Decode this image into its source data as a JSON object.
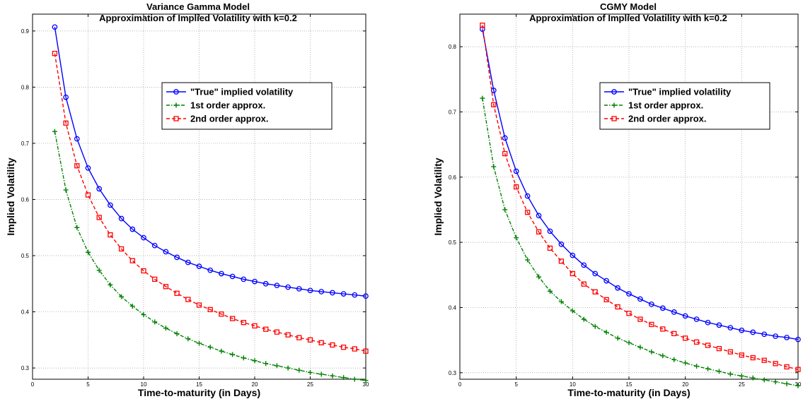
{
  "chart_data": [
    {
      "type": "line",
      "title": "Variance Gamma Model",
      "subtitle": "Approximation of Implied Volatility with k=0.2",
      "xlabel": "Time-to-maturity (in Days)",
      "ylabel": "Implied Volatility",
      "xlim": [
        0,
        30
      ],
      "ylim": [
        0.28,
        0.93
      ],
      "x_ticks": [
        "0",
        "5",
        "10",
        "15",
        "20",
        "25",
        "30"
      ],
      "y_ticks": [
        "0.3",
        "0.4",
        "0.5",
        "0.6",
        "0.7",
        "0.8",
        "0.9"
      ],
      "grid": true,
      "legend_position": "upper-right",
      "x": [
        2,
        3,
        4,
        5,
        6,
        7,
        8,
        9,
        10,
        11,
        12,
        13,
        14,
        15,
        16,
        17,
        18,
        19,
        20,
        21,
        22,
        23,
        24,
        25,
        26,
        27,
        28,
        29,
        30
      ],
      "series": [
        {
          "name": "\"True\" implied volatility",
          "color": "#0000ff",
          "line_style": "solid",
          "marker": "circle",
          "values": [
            0.907,
            0.782,
            0.708,
            0.656,
            0.619,
            0.59,
            0.566,
            0.547,
            0.532,
            0.518,
            0.507,
            0.497,
            0.488,
            0.481,
            0.474,
            0.468,
            0.463,
            0.458,
            0.454,
            0.45,
            0.447,
            0.444,
            0.441,
            0.438,
            0.436,
            0.434,
            0.432,
            0.43,
            0.428
          ]
        },
        {
          "name": "1st order approx.",
          "color": "#008000",
          "line_style": "dash-dot",
          "marker": "plus",
          "values": [
            0.721,
            0.617,
            0.55,
            0.506,
            0.474,
            0.448,
            0.427,
            0.41,
            0.395,
            0.382,
            0.371,
            0.361,
            0.352,
            0.344,
            0.337,
            0.33,
            0.324,
            0.318,
            0.313,
            0.308,
            0.304,
            0.3,
            0.296,
            0.292,
            0.289,
            0.286,
            0.283,
            0.28,
            0.278
          ]
        },
        {
          "name": "2nd order approx.",
          "color": "#ff0000",
          "line_style": "dashed",
          "marker": "square",
          "values": [
            0.86,
            0.736,
            0.66,
            0.608,
            0.568,
            0.537,
            0.512,
            0.491,
            0.473,
            0.458,
            0.445,
            0.433,
            0.422,
            0.412,
            0.404,
            0.396,
            0.388,
            0.381,
            0.375,
            0.369,
            0.364,
            0.359,
            0.354,
            0.35,
            0.345,
            0.341,
            0.337,
            0.334,
            0.33
          ]
        }
      ]
    },
    {
      "type": "line",
      "title": "CGMY Model",
      "subtitle": "Approximation of Implied Volatility with k=0.2",
      "xlabel": "Time-to-maturity (in Days)",
      "ylabel": "Implied Volatility",
      "xlim": [
        0,
        30
      ],
      "ylim": [
        0.29,
        0.85
      ],
      "x_ticks": [
        "0",
        "5",
        "10",
        "15",
        "20",
        "25",
        "30"
      ],
      "y_ticks": [
        "0.3",
        "0.4",
        "0.5",
        "0.6",
        "0.7",
        "0.8"
      ],
      "grid": true,
      "legend_position": "upper-right",
      "x": [
        2,
        3,
        4,
        5,
        6,
        7,
        8,
        9,
        10,
        11,
        12,
        13,
        14,
        15,
        16,
        17,
        18,
        19,
        20,
        21,
        22,
        23,
        24,
        25,
        26,
        27,
        28,
        29,
        30
      ],
      "series": [
        {
          "name": "\"True\" implied volatility",
          "color": "#0000ff",
          "line_style": "solid",
          "marker": "circle",
          "values": [
            0.827,
            0.733,
            0.66,
            0.609,
            0.571,
            0.541,
            0.517,
            0.497,
            0.48,
            0.465,
            0.452,
            0.441,
            0.43,
            0.421,
            0.413,
            0.405,
            0.399,
            0.393,
            0.387,
            0.382,
            0.377,
            0.373,
            0.369,
            0.365,
            0.362,
            0.359,
            0.356,
            0.354,
            0.351
          ]
        },
        {
          "name": "1st order approx.",
          "color": "#008000",
          "line_style": "dash-dot",
          "marker": "plus",
          "values": [
            0.721,
            0.616,
            0.55,
            0.507,
            0.473,
            0.447,
            0.425,
            0.409,
            0.395,
            0.382,
            0.371,
            0.362,
            0.353,
            0.346,
            0.339,
            0.332,
            0.326,
            0.32,
            0.315,
            0.31,
            0.306,
            0.302,
            0.298,
            0.295,
            0.292,
            0.289,
            0.286,
            0.283,
            0.28
          ]
        },
        {
          "name": "2nd order approx.",
          "color": "#ff0000",
          "line_style": "dashed",
          "marker": "square",
          "values": [
            0.833,
            0.711,
            0.636,
            0.585,
            0.546,
            0.516,
            0.491,
            0.471,
            0.452,
            0.436,
            0.424,
            0.412,
            0.401,
            0.391,
            0.382,
            0.374,
            0.367,
            0.36,
            0.353,
            0.347,
            0.342,
            0.337,
            0.332,
            0.327,
            0.323,
            0.319,
            0.314,
            0.309,
            0.305
          ]
        }
      ]
    }
  ]
}
